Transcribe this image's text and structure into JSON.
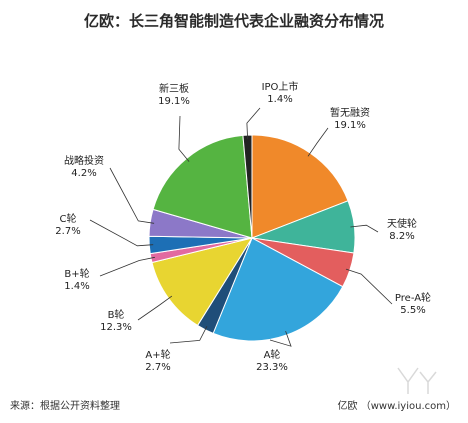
{
  "chart_data": {
    "type": "pie",
    "title": "亿欧：长三角智能制造代表企业融资分布情况",
    "slices": [
      {
        "name": "暂无融资",
        "value": 19.1,
        "label": "19.1%",
        "color": "#f0892a"
      },
      {
        "name": "天使轮",
        "value": 8.2,
        "label": "8.2%",
        "color": "#3fb49a"
      },
      {
        "name": "Pre-A轮",
        "value": 5.5,
        "label": "5.5%",
        "color": "#e35e5e"
      },
      {
        "name": "A轮",
        "value": 23.3,
        "label": "23.3%",
        "color": "#33a5dc"
      },
      {
        "name": "A+轮",
        "value": 2.7,
        "label": "2.7%",
        "color": "#1f4e79"
      },
      {
        "name": "B轮",
        "value": 12.3,
        "label": "12.3%",
        "color": "#e8d531"
      },
      {
        "name": "B+轮",
        "value": 1.4,
        "label": "1.4%",
        "color": "#e26aa0"
      },
      {
        "name": "C轮",
        "value": 2.7,
        "label": "2.7%",
        "color": "#1d6fb5"
      },
      {
        "name": "战略投资",
        "value": 4.2,
        "label": "4.2%",
        "color": "#8c78c8"
      },
      {
        "name": "新三板",
        "value": 19.1,
        "label": "19.1%",
        "color": "#55b441"
      },
      {
        "name": "IPO上市",
        "value": 1.4,
        "label": "1.4%",
        "color": "#222222"
      }
    ]
  },
  "footer": {
    "source": "来源：根据公开资料整理",
    "credit": "亿欧 （www.iyiou.com）"
  }
}
